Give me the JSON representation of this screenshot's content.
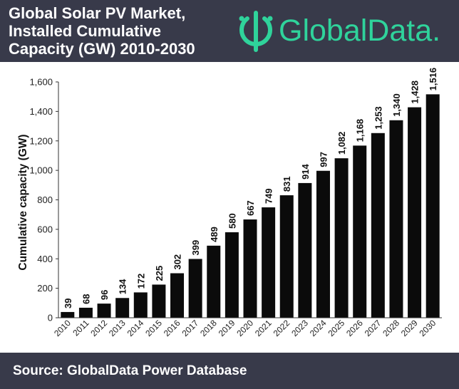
{
  "header": {
    "title_lines": [
      "Global Solar PV Market,",
      "Installed Cumulative",
      "Capacity (GW) 2010-2030"
    ],
    "logo_text": "GlobalData.",
    "brand_color": "#2fd39b",
    "background_color": "#383a4a"
  },
  "chart_data": {
    "type": "bar",
    "categories": [
      "2010",
      "2011",
      "2012",
      "2013",
      "2014",
      "2015",
      "2016",
      "2017",
      "2018",
      "2019",
      "2020",
      "2021",
      "2022",
      "2023",
      "2024",
      "2025",
      "2026",
      "2027",
      "2028",
      "2029",
      "2030"
    ],
    "values": [
      39,
      68,
      96,
      134,
      172,
      225,
      302,
      399,
      489,
      580,
      667,
      749,
      831,
      914,
      997,
      1082,
      1168,
      1253,
      1340,
      1428,
      1516
    ],
    "data_labels": [
      "39",
      "68",
      "96",
      "134",
      "172",
      "225",
      "302",
      "399",
      "489",
      "580",
      "667",
      "749",
      "831",
      "914",
      "997",
      "1,082",
      "1,168",
      "1,253",
      "1,340",
      "1,428",
      "1,516"
    ],
    "ylabel": "Cumulative capacity (GW)",
    "xlabel": "",
    "ylim": [
      0,
      1600
    ],
    "yticks": [
      0,
      200,
      400,
      600,
      800,
      1000,
      1200,
      1400,
      1600
    ],
    "ytick_labels": [
      "0",
      "200",
      "400",
      "600",
      "800",
      "1,000",
      "1,200",
      "1,400",
      "1,600"
    ],
    "bar_color": "#0b0b0b",
    "grid": false,
    "legend": "none"
  },
  "footer": {
    "source": "Source: GlobalData Power Database"
  }
}
